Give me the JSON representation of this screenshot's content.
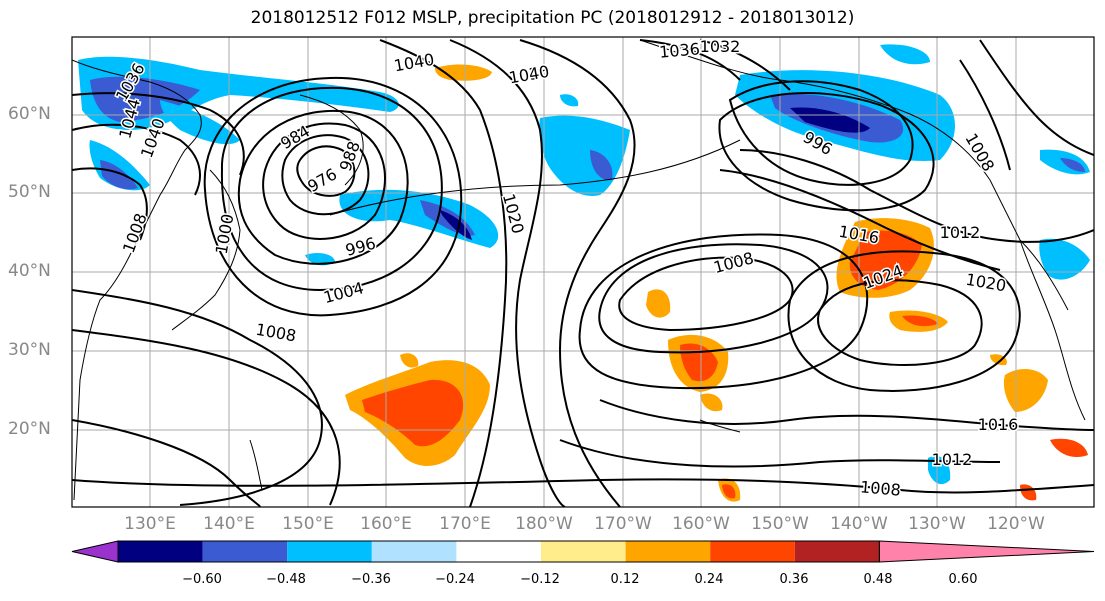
{
  "title": "2018012512 F012 MSLP, precipitation PC (2018012912 - 2018013012)",
  "lat_labels": [
    "60°N",
    "50°N",
    "40°N",
    "30°N",
    "20°N"
  ],
  "lon_labels": [
    "130°E",
    "140°E",
    "150°E",
    "160°E",
    "170°E",
    "180°W",
    "170°W",
    "160°W",
    "150°W",
    "140°W",
    "130°W",
    "120°W"
  ],
  "isobar_labels": [
    "1036",
    "1040",
    "1044",
    "1040",
    "1036",
    "984",
    "988",
    "976",
    "1032",
    "1036",
    "1040",
    "1000",
    "1020",
    "996",
    "1004",
    "1008",
    "1008",
    "1016",
    "1012",
    "1024",
    "1020",
    "1016",
    "1012",
    "1008",
    "996",
    "1008",
    "1008"
  ],
  "colorbar": {
    "ticks": [
      "−0.60",
      "−0.48",
      "−0.36",
      "−0.24",
      "−0.12",
      "0.12",
      "0.24",
      "0.36",
      "0.48",
      "0.60"
    ],
    "colors": [
      "#9a32cd",
      "#000080",
      "#3b5bd2",
      "#00bfff",
      "#b0e2ff",
      "#ffffff",
      "#ffec8b",
      "#ffa500",
      "#ff4500",
      "#b22222",
      "#ff82ab"
    ]
  }
}
